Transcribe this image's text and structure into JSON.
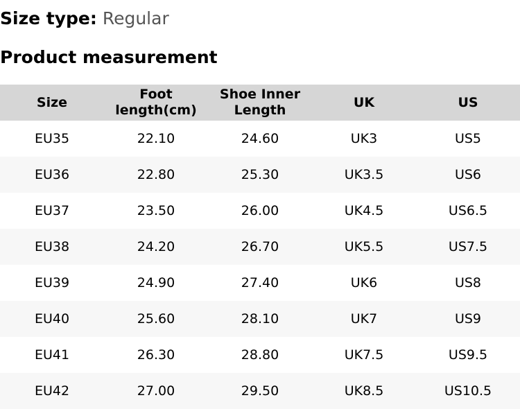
{
  "size_type": {
    "label": "Size type:",
    "value": "Regular"
  },
  "section_title": "Product measurement",
  "table": {
    "headers": [
      "Size",
      "Foot length(cm)",
      "Shoe Inner Length",
      "UK",
      "US"
    ],
    "rows": [
      [
        "EU35",
        "22.10",
        "24.60",
        "UK3",
        "US5"
      ],
      [
        "EU36",
        "22.80",
        "25.30",
        "UK3.5",
        "US6"
      ],
      [
        "EU37",
        "23.50",
        "26.00",
        "UK4.5",
        "US6.5"
      ],
      [
        "EU38",
        "24.20",
        "26.70",
        "UK5.5",
        "US7.5"
      ],
      [
        "EU39",
        "24.90",
        "27.40",
        "UK6",
        "US8"
      ],
      [
        "EU40",
        "25.60",
        "28.10",
        "UK7",
        "US9"
      ],
      [
        "EU41",
        "26.30",
        "28.80",
        "UK7.5",
        "US9.5"
      ],
      [
        "EU42",
        "27.00",
        "29.50",
        "UK8.5",
        "US10.5"
      ]
    ]
  },
  "colors": {
    "header_bg": "#d6d6d6",
    "alt_row_bg": "#f7f7f7",
    "value_text": "#555555"
  }
}
